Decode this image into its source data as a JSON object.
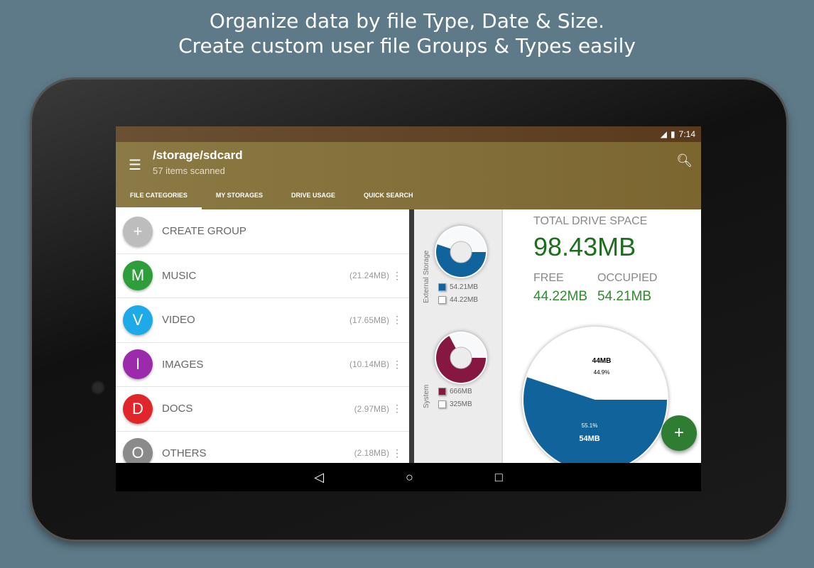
{
  "headline": [
    "Organize data by file Type, Date & Size.",
    "Create custom user file Groups & Types easily"
  ],
  "status": {
    "time": "7:14",
    "signal_icon": "signal-icon",
    "battery_icon": "battery-icon"
  },
  "appbar": {
    "title": "/storage/sdcard",
    "subtitle": "57 items scanned"
  },
  "tabs": [
    {
      "label": "FILE CATEGORIES",
      "active": true
    },
    {
      "label": "MY STORAGES"
    },
    {
      "label": "DRIVE USAGE"
    },
    {
      "label": "QUICK SEARCH"
    }
  ],
  "categories": [
    {
      "letter": "+",
      "label": "CREATE GROUP",
      "size": "",
      "color": "#bdbdbd"
    },
    {
      "letter": "M",
      "label": "MUSIC",
      "size": "(21.24MB)",
      "color": "#2e9e3a"
    },
    {
      "letter": "V",
      "label": "VIDEO",
      "size": "(17.65MB)",
      "color": "#1ea9e8"
    },
    {
      "letter": "I",
      "label": "IMAGES",
      "size": "(10.14MB)",
      "color": "#9c2bab"
    },
    {
      "letter": "D",
      "label": "DOCS",
      "size": "(2.97MB)",
      "color": "#e0262b"
    },
    {
      "letter": "O",
      "label": "OTHERS",
      "size": "(2.18MB)",
      "color": "#8a8a8a"
    }
  ],
  "drive": {
    "total_label": "TOTAL DRIVE SPACE",
    "total": "98.43MB",
    "free_label": "FREE",
    "free": "44.22MB",
    "occupied_label": "OCCUPIED",
    "occupied": "54.21MB"
  },
  "chart_data": [
    {
      "type": "pie",
      "donut": true,
      "title": "External Storage",
      "series": [
        {
          "label": "54.21MB",
          "value": 54.21,
          "color": "#11649b"
        },
        {
          "label": "44.22MB",
          "value": 44.22,
          "color": "#f7f9fb"
        }
      ]
    },
    {
      "type": "pie",
      "donut": true,
      "title": "System",
      "series": [
        {
          "label": "666MB",
          "value": 666,
          "color": "#861740"
        },
        {
          "label": "325MB",
          "value": 325,
          "color": "#f7f9fb"
        }
      ]
    },
    {
      "type": "pie",
      "series": [
        {
          "label": "54MB",
          "percent": "55.1%",
          "value": 55.1,
          "color": "#11649b"
        },
        {
          "label": "44MB",
          "percent": "44.9%",
          "value": 44.9,
          "color": "#ffffff"
        }
      ]
    }
  ]
}
